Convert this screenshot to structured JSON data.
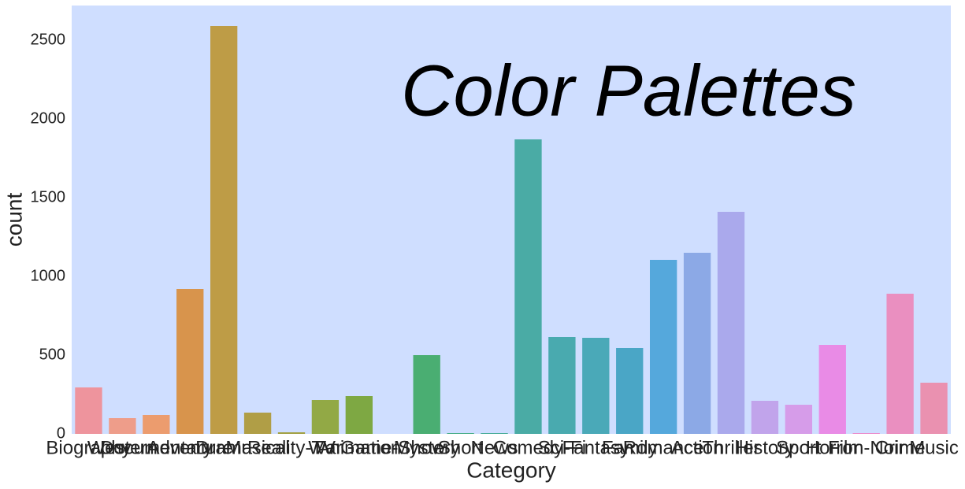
{
  "chart_data": {
    "type": "bar",
    "annotation": "Color Palettes",
    "xlabel": "Category",
    "ylabel": "count",
    "categories": [
      "Biography",
      "Western",
      "Documentary",
      "Adventure",
      "Drama",
      "Musical",
      "Reality-TV",
      "War",
      "Animation",
      "Game-Show",
      "Mystery",
      "Short",
      "News",
      "Comedy",
      "Sci-Fi",
      "Fantasy",
      "Family",
      "Romance",
      "Action",
      "Thriller",
      "History",
      "Sport",
      "Horror",
      "Film-Noir",
      "Crime",
      "Music"
    ],
    "values": [
      295,
      100,
      120,
      920,
      2590,
      135,
      10,
      215,
      240,
      0,
      500,
      5,
      5,
      1870,
      615,
      610,
      545,
      1105,
      1150,
      1410,
      210,
      185,
      565,
      5,
      890,
      325
    ],
    "colors": [
      "#ee949d",
      "#ee9d8a",
      "#ec9c6e",
      "#d8944c",
      "#be9c46",
      "#b09e46",
      "#a2a043",
      "#92a945",
      "#7ea843",
      "#5aab5a",
      "#4aae72",
      "#48ae89",
      "#48ac99",
      "#4aaba5",
      "#49aaaf",
      "#4aa9b8",
      "#4aa6c6",
      "#55a8dc",
      "#8ca9e6",
      "#aaa9ec",
      "#c1a4eb",
      "#d69ce9",
      "#e98be6",
      "#eb8ccd",
      "#ea8fc0",
      "#ea91b0"
    ],
    "ylim": [
      0,
      2720
    ],
    "yticks": [
      0,
      500,
      1000,
      1500,
      2000,
      2500
    ],
    "background": "#cfdeff"
  }
}
